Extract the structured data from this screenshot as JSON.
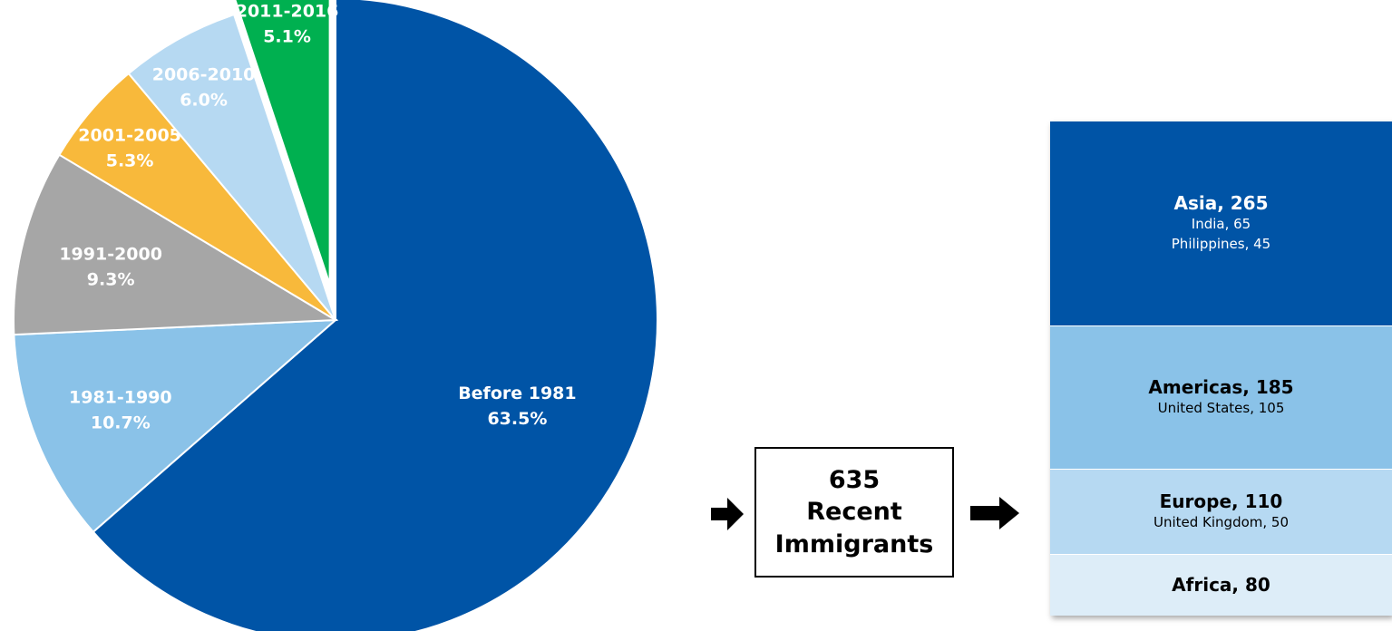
{
  "chart_data": [
    {
      "type": "pie",
      "title": "",
      "slices": [
        {
          "label": "Before 1981",
          "value": 63.5,
          "value_label": "63.5%",
          "color": "#0054a6",
          "exploded": false
        },
        {
          "label": "1981-1990",
          "value": 10.7,
          "value_label": "10.7%",
          "color": "#8ac2e8",
          "exploded": false
        },
        {
          "label": "1991-2000",
          "value": 9.3,
          "value_label": "9.3%",
          "color": "#a6a6a6",
          "exploded": false
        },
        {
          "label": "2001-2005",
          "value": 5.3,
          "value_label": "5.3%",
          "color": "#f8b93b",
          "exploded": false
        },
        {
          "label": "2006-2010",
          "value": 6.0,
          "value_label": "6.0%",
          "color": "#b6d9f2",
          "exploded": false
        },
        {
          "label": "2011-2016",
          "value": 5.1,
          "value_label": "5.1%",
          "color": "#00b050",
          "exploded": true
        }
      ]
    },
    {
      "type": "bar",
      "stacked": true,
      "categories": [
        "Asia",
        "Americas",
        "Europe",
        "Africa"
      ],
      "values": [
        265,
        185,
        110,
        80
      ],
      "blocks": [
        {
          "region": "Asia, 265",
          "value": 265,
          "color": "#0054a6",
          "text_color": "#ffffff",
          "countries": [
            "India, 65",
            "Philippines, 45"
          ]
        },
        {
          "region": "Americas, 185",
          "value": 185,
          "color": "#8ac2e8",
          "text_color": "#000000",
          "countries": [
            "United States, 105"
          ]
        },
        {
          "region": "Europe, 110",
          "value": 110,
          "color": "#b6d9f2",
          "text_color": "#000000",
          "countries": [
            "United Kingdom, 50"
          ]
        },
        {
          "region": "Africa, 80",
          "value": 80,
          "color": "#ddedf8",
          "text_color": "#000000",
          "countries": []
        }
      ]
    }
  ],
  "summary": {
    "number": "635",
    "line1": "Recent",
    "line2": "Immigrants"
  }
}
